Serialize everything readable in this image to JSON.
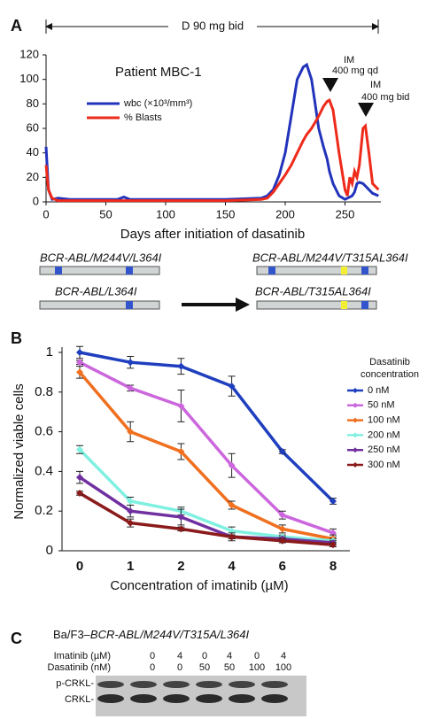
{
  "panel_labels": [
    "A",
    "B",
    "C"
  ],
  "chart_data": [
    {
      "type": "line",
      "annotations": [
        "D 90 mg bid",
        "Patient MBC-1",
        "IM",
        "400 mg qd",
        "IM",
        "400 mg bid"
      ],
      "x_label": "Days after initiation of dasatinib",
      "x": [
        0,
        2,
        5,
        10,
        20,
        40,
        60,
        65,
        70,
        100,
        130,
        150,
        180,
        185,
        190,
        195,
        200,
        205,
        210,
        215,
        218,
        222,
        225,
        228,
        232,
        235,
        237,
        240,
        245,
        250,
        252,
        254,
        256,
        258,
        260,
        262,
        265,
        267,
        270,
        273,
        278
      ],
      "series": [
        {
          "name": "wbc (×10³/mm³)",
          "color": "#2233bb",
          "values": [
            45,
            10,
            2,
            3,
            2,
            2,
            2,
            4,
            2,
            2,
            2,
            2,
            3,
            5,
            10,
            22,
            40,
            70,
            100,
            110,
            112,
            100,
            80,
            60,
            45,
            35,
            25,
            15,
            5,
            2,
            3,
            4,
            5,
            8,
            15,
            16,
            15,
            13,
            10,
            7,
            5
          ]
        },
        {
          "name": "% Blasts",
          "color": "#ee2a1a",
          "values": [
            30,
            10,
            3,
            1,
            1,
            1,
            1,
            1,
            1,
            1,
            1,
            1,
            2,
            3,
            8,
            15,
            22,
            30,
            40,
            50,
            55,
            60,
            65,
            70,
            78,
            82,
            83,
            75,
            40,
            10,
            5,
            20,
            15,
            25,
            20,
            30,
            60,
            62,
            40,
            15,
            10
          ]
        }
      ],
      "xlim": [
        0,
        280
      ],
      "xticks": [
        0,
        50,
        100,
        150,
        200,
        250
      ],
      "ylim": [
        0,
        120
      ],
      "yticks": [
        0,
        20,
        40,
        60,
        80,
        100,
        120
      ]
    },
    {
      "type": "line",
      "x_label": "Concentration of imatinib (µM)",
      "y_label": "Normalized viable cells",
      "legend_title": "Dasatinib concentration",
      "categories": [
        "0",
        "1",
        "2",
        "4",
        "6",
        "8"
      ],
      "series": [
        {
          "name": "0 nM",
          "color": "#1f3fbf",
          "values": [
            1.0,
            0.95,
            0.93,
            0.83,
            0.5,
            0.25
          ],
          "errors": [
            0.03,
            0.03,
            0.04,
            0.05,
            0.01,
            0.015
          ]
        },
        {
          "name": "50 nM",
          "color": "#cc66dd",
          "values": [
            0.95,
            0.82,
            0.73,
            0.43,
            0.18,
            0.09
          ],
          "errors": [
            0.01,
            0.015,
            0.08,
            0.06,
            0.02,
            0.02
          ]
        },
        {
          "name": "100 nM",
          "color": "#f07020",
          "values": [
            0.9,
            0.6,
            0.5,
            0.23,
            0.11,
            0.06
          ],
          "errors": [
            0.03,
            0.05,
            0.04,
            0.02,
            0.02,
            0.02
          ]
        },
        {
          "name": "200 nM",
          "color": "#80f0e0",
          "values": [
            0.51,
            0.25,
            0.2,
            0.1,
            0.07,
            0.05
          ],
          "errors": [
            0.02,
            0.02,
            0.02,
            0.02,
            0.01,
            0.01
          ]
        },
        {
          "name": "250 nM",
          "color": "#7030a0",
          "values": [
            0.37,
            0.2,
            0.17,
            0.07,
            0.06,
            0.04
          ],
          "errors": [
            0.03,
            0.03,
            0.04,
            0.02,
            0.01,
            0.01
          ]
        },
        {
          "name": "300 nM",
          "color": "#8b1a1a",
          "values": [
            0.29,
            0.14,
            0.11,
            0.07,
            0.05,
            0.03
          ],
          "errors": [
            0.01,
            0.02,
            0.01,
            0.01,
            0.01,
            0.01
          ]
        }
      ],
      "ylim": [
        0,
        1
      ],
      "yticks": [
        0,
        0.2,
        0.4,
        0.6,
        0.8,
        1
      ]
    }
  ],
  "diagram": {
    "left_top": "BCR-ABL/M244V/L364I",
    "left_bottom": "BCR-ABL/L364I",
    "right_top": "BCR-ABL/M244V/T315AL364I",
    "right_bottom": "BCR-ABL/T315AL364I"
  },
  "blot": {
    "title_prefix": "Ba/F3–",
    "title_gene": "BCR-ABL/M244V/T315A/L364I",
    "row_labels": [
      "Imatinib (µM)",
      "Dasatinib (nM)"
    ],
    "imatinib": [
      0,
      4,
      0,
      4,
      0,
      4
    ],
    "dasatinib": [
      0,
      0,
      50,
      50,
      100,
      100
    ],
    "bands": [
      "p-CRKL-",
      "CRKL-"
    ]
  }
}
